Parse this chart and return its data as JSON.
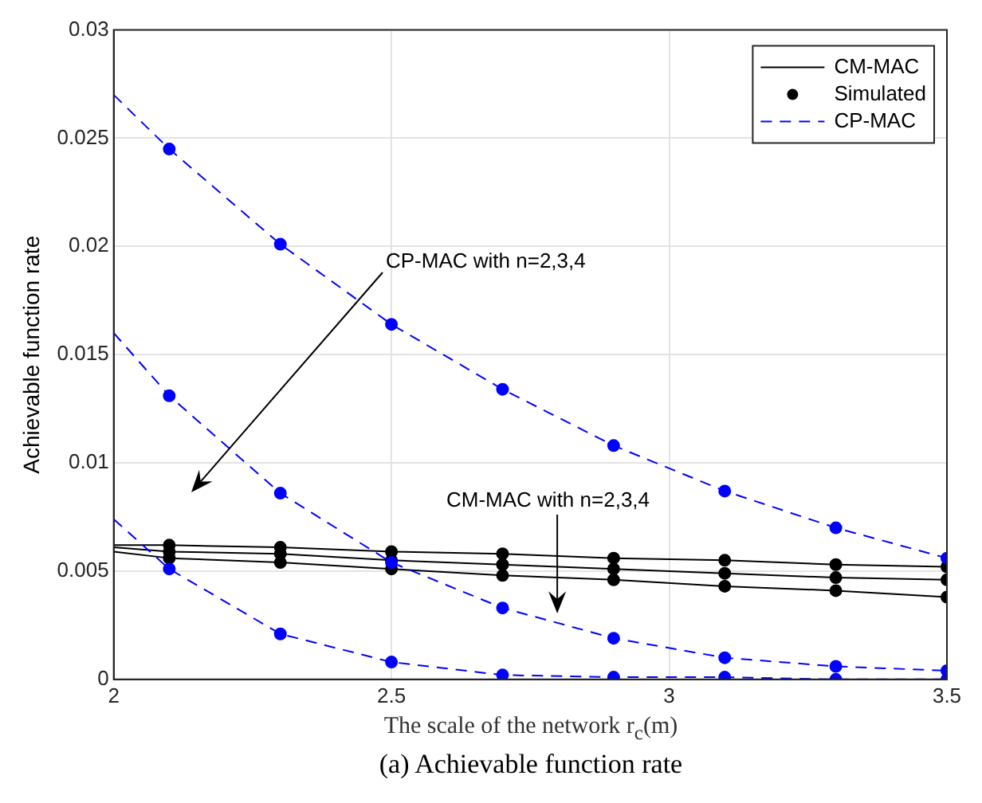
{
  "chart_data": {
    "type": "line",
    "xlabel": "The scale of the network r$_{c}$(m)",
    "ylabel": "Achievable function rate",
    "xlim": [
      2,
      3.5
    ],
    "xticks": [
      2,
      2.5,
      3,
      3.5
    ],
    "ylim": [
      0,
      0.03
    ],
    "yticks": [
      0,
      0.005,
      0.01,
      0.015,
      0.02,
      0.025,
      0.03
    ],
    "grid": true,
    "legend": "top right",
    "series": [
      {
        "name": "CM-MAC",
        "color": "#000000",
        "marker": "none",
        "line_style": "solid",
        "x": [
          2,
          2.1,
          2.3,
          2.5,
          2.7,
          2.9,
          3.1,
          3.3,
          3.5
        ],
        "values": [
          0.0062,
          0.0062,
          0.0061,
          0.0059,
          0.0058,
          0.0056,
          0.0055,
          0.0053,
          0.0052
        ]
      },
      {
        "name": "Simulated",
        "type": "scatter",
        "color": "#000000",
        "marker": "circle",
        "x": [
          2.1,
          2.3,
          2.5,
          2.7,
          2.9,
          3.1,
          3.3,
          3.5,
          2.1,
          2.3,
          2.5,
          2.7,
          2.9,
          3.1,
          3.3,
          3.5,
          2.1,
          2.3,
          2.5,
          2.7,
          2.9,
          3.1,
          3.3,
          3.5
        ],
        "values": [
          0.0062,
          0.0061,
          0.0059,
          0.0058,
          0.0056,
          0.0055,
          0.0053,
          0.0052,
          0.0059,
          0.0058,
          0.0055,
          0.0053,
          0.0051,
          0.0049,
          0.0047,
          0.0046,
          0.0056,
          0.0054,
          0.0051,
          0.0048,
          0.0046,
          0.0043,
          0.0041,
          0.0038
        ]
      },
      {
        "name": "CP-MAC",
        "color": "#0000ff",
        "marker": "none",
        "line_style": "dashed",
        "x": [
          2,
          2.1,
          2.3,
          2.5,
          2.7,
          2.9,
          3.1,
          3.3,
          3.5
        ],
        "values": [
          0.027,
          0.0245,
          0.0201,
          0.0164,
          0.0134,
          0.0108,
          0.0087,
          0.007,
          0.0056
        ]
      },
      {
        "color": "#000000",
        "marker": "none",
        "line_style": "solid",
        "x": [
          2,
          2.1,
          2.3,
          2.5,
          2.7,
          2.9,
          3.1,
          3.3,
          3.5
        ],
        "values": [
          0.0061,
          0.0059,
          0.0058,
          0.0055,
          0.0053,
          0.0051,
          0.0049,
          0.0047,
          0.0046
        ]
      },
      {
        "color": "#000000",
        "marker": "none",
        "line_style": "solid",
        "x": [
          2,
          2.1,
          2.3,
          2.5,
          2.7,
          2.9,
          3.1,
          3.3,
          3.5
        ],
        "values": [
          0.0059,
          0.0056,
          0.0054,
          0.0051,
          0.0048,
          0.0046,
          0.0043,
          0.0041,
          0.0038
        ]
      },
      {
        "color": "#0000ff",
        "marker": "none",
        "line_style": "dashed",
        "x": [
          2,
          2.1,
          2.3,
          2.5,
          2.7,
          2.9,
          3.1,
          3.3,
          3.5
        ],
        "values": [
          0.016,
          0.0131,
          0.0086,
          0.0054,
          0.0033,
          0.0019,
          0.001,
          0.0006,
          0.0004
        ]
      },
      {
        "color": "#0000ff",
        "marker": "none",
        "line_style": "dashed",
        "x": [
          2,
          2.1,
          2.3,
          2.5,
          2.7,
          2.9,
          3.1,
          3.3,
          3.5
        ],
        "values": [
          0.0074,
          0.0051,
          0.0021,
          0.0008,
          0.0002,
          0.0001,
          0.0001,
          0,
          0
        ]
      },
      {
        "type": "scatter",
        "color": "#0000ff",
        "marker": "circle",
        "x": [
          2.1,
          2.3,
          2.5,
          2.7,
          2.9,
          3.1,
          3.3,
          3.5,
          2.1,
          2.3,
          2.5,
          2.7,
          2.9,
          3.1,
          3.3,
          3.5,
          2.1,
          2.3,
          2.5,
          2.7,
          2.9,
          3.1,
          3.3,
          3.5
        ],
        "values": [
          0.0245,
          0.0201,
          0.0164,
          0.0134,
          0.0108,
          0.0087,
          0.007,
          0.0056,
          0.0131,
          0.0086,
          0.0054,
          0.0033,
          0.0019,
          0.001,
          0.0006,
          0.0004,
          0.0051,
          0.0021,
          0.0008,
          0.0002,
          0.0001,
          0.0001,
          0,
          0
        ]
      }
    ],
    "annotations": [
      "CP-MAC with n=2,3,4",
      "CM-MAC with n=2,3,4",
      "(a) Achievable function rate"
    ]
  }
}
